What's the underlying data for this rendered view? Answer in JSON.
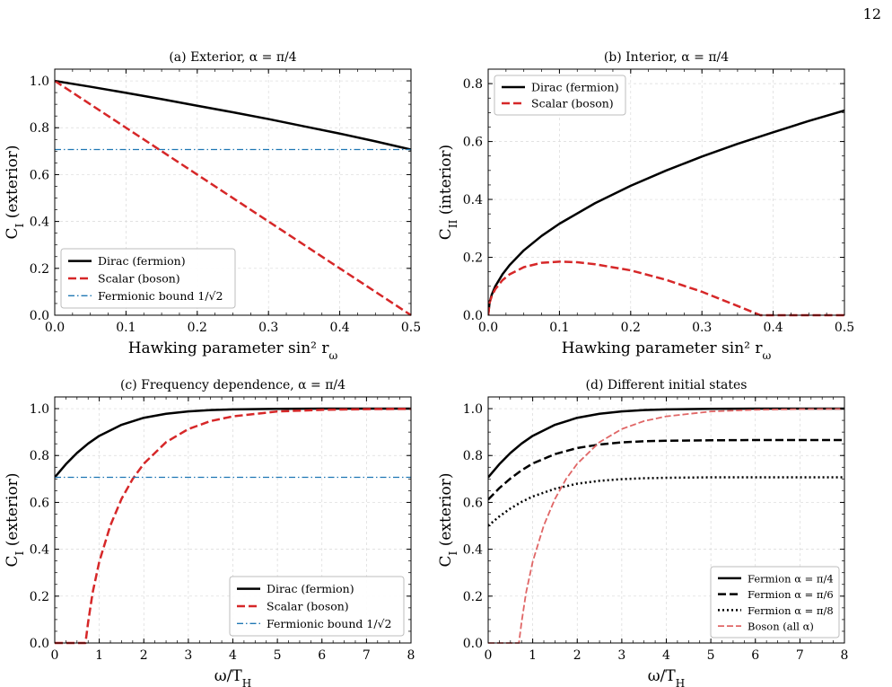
{
  "page_number": "12",
  "colors": {
    "black": "#000000",
    "red": "#d62728",
    "light_red": "#e06666",
    "blue": "#1f77b4",
    "grid": "#d9d9d9"
  },
  "chart_data": [
    {
      "type": "line",
      "title": "(a) Exterior, α = π/4",
      "xlabel": "Hawking parameter sin² r_ω",
      "ylabel": "C_I (exterior)",
      "xlim": [
        0,
        0.5
      ],
      "ylim": [
        0,
        1.05
      ],
      "xticks": [
        0,
        0.1,
        0.2,
        0.3,
        0.4,
        0.5
      ],
      "xtick_labels": [
        "0.0",
        "0.1",
        "0.2",
        "0.3",
        "0.4",
        "0.5"
      ],
      "yticks": [
        0,
        0.2,
        0.4,
        0.6,
        0.8,
        1.0
      ],
      "ytick_labels": [
        "0.0",
        "0.2",
        "0.4",
        "0.6",
        "0.8",
        "1.0"
      ],
      "grid": true,
      "legend_position": "bottom-left",
      "series": [
        {
          "name": "Dirac (fermion)",
          "style": "solid",
          "color": "#000000",
          "x": [
            0,
            0.05,
            0.1,
            0.15,
            0.2,
            0.25,
            0.3,
            0.35,
            0.4,
            0.45,
            0.5
          ],
          "y": [
            1.0,
            0.975,
            0.949,
            0.922,
            0.894,
            0.866,
            0.837,
            0.806,
            0.775,
            0.742,
            0.707
          ]
        },
        {
          "name": "Scalar (boson)",
          "style": "dashed",
          "color": "#d62728",
          "x": [
            0,
            0.1,
            0.2,
            0.3,
            0.4,
            0.5
          ],
          "y": [
            1.0,
            0.8,
            0.6,
            0.4,
            0.2,
            0.0
          ]
        },
        {
          "name": "Fermionic bound 1/√2",
          "style": "dashdot",
          "color": "#1f77b4",
          "x": [
            0,
            0.5
          ],
          "y": [
            0.707,
            0.707
          ]
        }
      ]
    },
    {
      "type": "line",
      "title": "(b) Interior, α = π/4",
      "xlabel": "Hawking parameter sin² r_ω",
      "ylabel": "C_II (interior)",
      "xlim": [
        0,
        0.5
      ],
      "ylim": [
        0,
        0.85
      ],
      "xticks": [
        0,
        0.1,
        0.2,
        0.3,
        0.4,
        0.5
      ],
      "xtick_labels": [
        "0.0",
        "0.1",
        "0.2",
        "0.3",
        "0.4",
        "0.5"
      ],
      "yticks": [
        0,
        0.2,
        0.4,
        0.6,
        0.8
      ],
      "ytick_labels": [
        "0.0",
        "0.2",
        "0.4",
        "0.6",
        "0.8"
      ],
      "grid": true,
      "legend_position": "top-left",
      "series": [
        {
          "name": "Dirac (fermion)",
          "style": "solid",
          "color": "#000000",
          "x": [
            0,
            0.002,
            0.005,
            0.01,
            0.02,
            0.03,
            0.05,
            0.075,
            0.1,
            0.15,
            0.2,
            0.25,
            0.3,
            0.35,
            0.4,
            0.45,
            0.5
          ],
          "y": [
            0,
            0.045,
            0.071,
            0.1,
            0.141,
            0.173,
            0.224,
            0.274,
            0.316,
            0.387,
            0.447,
            0.5,
            0.548,
            0.592,
            0.632,
            0.671,
            0.707
          ]
        },
        {
          "name": "Scalar (boson)",
          "style": "dashed",
          "color": "#d62728",
          "x": [
            0,
            0.002,
            0.005,
            0.01,
            0.02,
            0.03,
            0.05,
            0.075,
            0.1,
            0.125,
            0.15,
            0.2,
            0.25,
            0.3,
            0.35,
            0.382,
            0.4,
            0.45,
            0.5
          ],
          "y": [
            0,
            0.043,
            0.066,
            0.09,
            0.121,
            0.141,
            0.166,
            0.181,
            0.185,
            0.183,
            0.176,
            0.155,
            0.122,
            0.081,
            0.032,
            0.0,
            0.0,
            0.0,
            0.0
          ]
        }
      ]
    },
    {
      "type": "line",
      "title": "(c) Frequency dependence, α = π/4",
      "xlabel": "ω/T_H",
      "ylabel": "C_I (exterior)",
      "xlim": [
        0,
        8
      ],
      "ylim": [
        0,
        1.05
      ],
      "xticks": [
        0,
        1,
        2,
        3,
        4,
        5,
        6,
        7,
        8
      ],
      "xtick_labels": [
        "0",
        "1",
        "2",
        "3",
        "4",
        "5",
        "6",
        "7",
        "8"
      ],
      "yticks": [
        0,
        0.2,
        0.4,
        0.6,
        0.8,
        1.0
      ],
      "ytick_labels": [
        "0.0",
        "0.2",
        "0.4",
        "0.6",
        "0.8",
        "1.0"
      ],
      "grid": true,
      "legend_position": "bottom-right",
      "series": [
        {
          "name": "Dirac (fermion)",
          "style": "solid",
          "color": "#000000",
          "x": [
            0,
            0.25,
            0.5,
            0.75,
            1,
            1.5,
            2,
            2.5,
            3,
            3.5,
            4,
            5,
            6,
            7,
            8
          ],
          "y": [
            0.707,
            0.763,
            0.811,
            0.851,
            0.884,
            0.931,
            0.961,
            0.978,
            0.988,
            0.994,
            0.997,
            0.999,
            1.0,
            1.0,
            1.0
          ]
        },
        {
          "name": "Scalar (boson)",
          "style": "dashed",
          "color": "#d62728",
          "x": [
            0,
            0.5,
            0.69,
            0.75,
            0.85,
            1,
            1.25,
            1.5,
            1.75,
            2,
            2.5,
            3,
            3.5,
            4,
            5,
            6,
            7,
            8
          ],
          "y": [
            0,
            0,
            0,
            0.089,
            0.214,
            0.347,
            0.502,
            0.615,
            0.7,
            0.765,
            0.857,
            0.913,
            0.947,
            0.967,
            0.988,
            0.995,
            0.998,
            0.999
          ]
        },
        {
          "name": "Fermionic bound 1/√2",
          "style": "dashdot",
          "color": "#1f77b4",
          "x": [
            0,
            8
          ],
          "y": [
            0.707,
            0.707
          ]
        }
      ]
    },
    {
      "type": "line",
      "title": "(d) Different initial states",
      "xlabel": "ω/T_H",
      "ylabel": "C_I (exterior)",
      "xlim": [
        0,
        8
      ],
      "ylim": [
        0,
        1.05
      ],
      "xticks": [
        0,
        1,
        2,
        3,
        4,
        5,
        6,
        7,
        8
      ],
      "xtick_labels": [
        "0",
        "1",
        "2",
        "3",
        "4",
        "5",
        "6",
        "7",
        "8"
      ],
      "yticks": [
        0,
        0.2,
        0.4,
        0.6,
        0.8,
        1.0
      ],
      "ytick_labels": [
        "0.0",
        "0.2",
        "0.4",
        "0.6",
        "0.8",
        "1.0"
      ],
      "grid": true,
      "legend_position": "bottom-right",
      "series": [
        {
          "name": "Fermion α = π/4",
          "style": "solid",
          "color": "#000000",
          "x": [
            0,
            0.25,
            0.5,
            0.75,
            1,
            1.5,
            2,
            2.5,
            3,
            3.5,
            4,
            5,
            6,
            7,
            8
          ],
          "y": [
            0.707,
            0.763,
            0.811,
            0.851,
            0.884,
            0.931,
            0.961,
            0.978,
            0.988,
            0.994,
            0.997,
            0.999,
            1.0,
            1.0,
            1.0
          ]
        },
        {
          "name": "Fermion α = π/6",
          "style": "dashed",
          "color": "#000000",
          "x": [
            0,
            0.25,
            0.5,
            0.75,
            1,
            1.5,
            2,
            2.5,
            3,
            3.5,
            4,
            5,
            6,
            7,
            8
          ],
          "y": [
            0.612,
            0.661,
            0.702,
            0.737,
            0.766,
            0.806,
            0.832,
            0.847,
            0.856,
            0.861,
            0.863,
            0.865,
            0.866,
            0.866,
            0.866
          ]
        },
        {
          "name": "Fermion α = π/8",
          "style": "dotted",
          "color": "#000000",
          "x": [
            0,
            0.25,
            0.5,
            0.75,
            1,
            1.5,
            2,
            2.5,
            3,
            3.5,
            4,
            5,
            6,
            7,
            8
          ],
          "y": [
            0.5,
            0.54,
            0.574,
            0.602,
            0.625,
            0.658,
            0.68,
            0.692,
            0.699,
            0.703,
            0.705,
            0.707,
            0.707,
            0.707,
            0.707
          ]
        },
        {
          "name": "Boson (all α)",
          "style": "dashed-thin",
          "color": "#e06666",
          "x": [
            0,
            0.5,
            0.69,
            0.75,
            0.85,
            1,
            1.25,
            1.5,
            1.75,
            2,
            2.5,
            3,
            3.5,
            4,
            5,
            6,
            7,
            8
          ],
          "y": [
            0,
            0,
            0,
            0.089,
            0.214,
            0.347,
            0.502,
            0.615,
            0.7,
            0.765,
            0.857,
            0.913,
            0.947,
            0.967,
            0.988,
            0.995,
            0.998,
            0.999
          ]
        }
      ]
    }
  ]
}
